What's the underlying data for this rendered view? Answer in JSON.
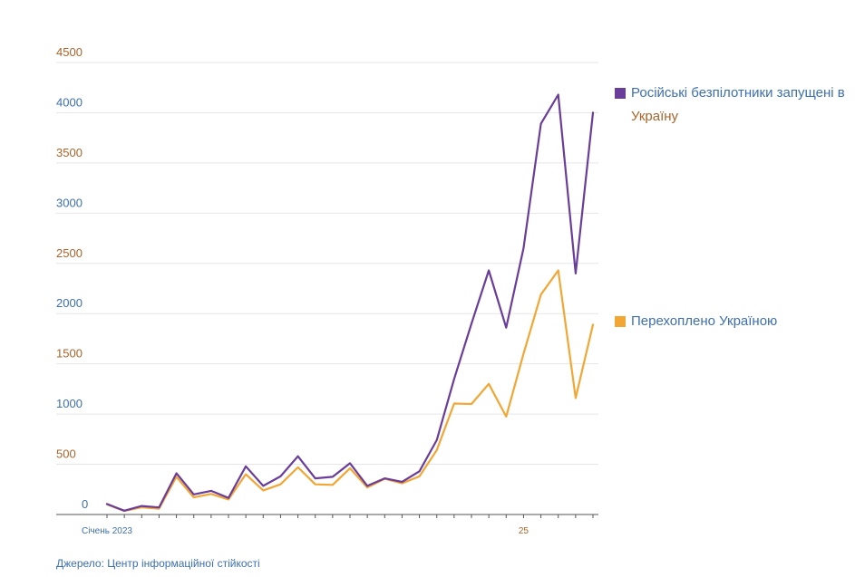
{
  "chart_data": {
    "type": "line",
    "title": "",
    "xlabel": "",
    "ylabel": "",
    "ylim": [
      0,
      4500
    ],
    "yticks": [
      0,
      500,
      1000,
      1500,
      2000,
      2500,
      3000,
      3500,
      4000,
      4500
    ],
    "x_tick_labels": [
      {
        "label": "Січень 2023",
        "index": 0
      },
      {
        "label": "25",
        "index": 24
      }
    ],
    "grid": true,
    "legend_position": "right",
    "series": [
      {
        "name": "Російські безпілотники запущені в Україну",
        "name_parts": [
          "Російські безпілотники запущені в",
          "Україну"
        ],
        "color": "#6a3d9a",
        "values": [
          105,
          38,
          85,
          70,
          410,
          200,
          235,
          165,
          480,
          285,
          380,
          580,
          360,
          375,
          510,
          285,
          360,
          325,
          430,
          740,
          1350,
          1900,
          2430,
          1860,
          2650,
          3890,
          4180,
          2400,
          4000
        ]
      },
      {
        "name": "Перехоплено Україною",
        "name_parts": [
          "Перехоплено Україною"
        ],
        "color": "#f2a634",
        "values": [
          100,
          35,
          72,
          58,
          375,
          170,
          205,
          150,
          400,
          240,
          300,
          470,
          300,
          295,
          460,
          270,
          355,
          310,
          380,
          640,
          1105,
          1100,
          1300,
          975,
          1600,
          2190,
          2430,
          1160,
          1890
        ]
      }
    ]
  },
  "source": "Джерело: Центр інформаційної стійкості",
  "colors": {
    "axis_blue": "#3d6fb0",
    "axis_brown": "#a8642b",
    "grid": "#e6e6e6"
  }
}
